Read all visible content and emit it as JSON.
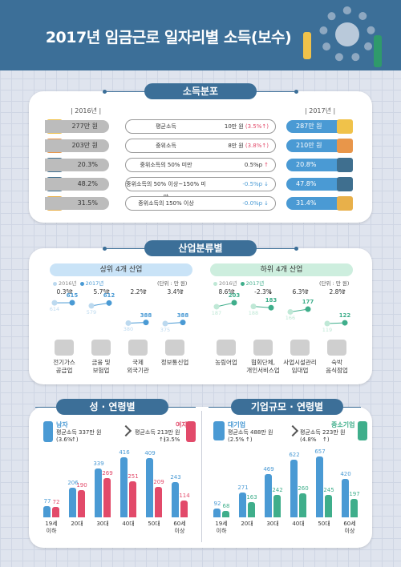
{
  "title": "2017년 임금근로 일자리별 소득(보수)",
  "colors": {
    "header": "#3c6f98",
    "up": "#e24a6a",
    "down": "#4a9ad4",
    "green": "#3fae8b",
    "pink": "#e24a6a"
  },
  "distribution": {
    "section_title": "소득분포",
    "year_left": "| 2016년 |",
    "year_right": "| 2017년 |",
    "rows": [
      {
        "left": "277만 원",
        "label": "평균소득",
        "change": "10만 원",
        "pct": "(3.5%",
        "arrow": "↑)",
        "dir": "up",
        "right": "287만 원",
        "icon": "wallet-icon"
      },
      {
        "left": "203만 원",
        "label": "중위소득",
        "change": "8만 원",
        "pct": "(3.8%",
        "arrow": "↑)",
        "dir": "up",
        "right": "210만 원",
        "icon": "chart-icon"
      },
      {
        "left": "20.3%",
        "label": "중위소득의 50% 미만",
        "change": "0.5%p",
        "pct": "",
        "arrow": "↑",
        "dir": "up",
        "right": "20.8%",
        "icon": "calculator-icon"
      },
      {
        "left": "48.2%",
        "label": "중위소득의 50% 이상~150% 미만",
        "change": "-0.5%p",
        "pct": "",
        "arrow": "↓",
        "dir": "down",
        "right": "47.8%",
        "icon": "calculator-icon"
      },
      {
        "left": "31.5%",
        "label": "중위소득의 150% 이상",
        "change": "-0.0%p",
        "pct": "",
        "arrow": "↓",
        "dir": "down",
        "right": "31.4%",
        "icon": "coins-icon"
      }
    ]
  },
  "industry": {
    "section_title": "산업분류별",
    "top": {
      "title": "상위 4개 산업",
      "legend_2016": "2016년",
      "legend_2017": "2017년",
      "unit": "(단위 : 만 원)",
      "items": [
        {
          "pct": "0.3%",
          "arrow": "↑",
          "v2016": 614,
          "v2017": 615,
          "name": "전기가스\n공급업",
          "icon": "plug-icon"
        },
        {
          "pct": "5.7%",
          "arrow": "↑",
          "v2016": 579,
          "v2017": 612,
          "name": "금융 및\n보험업",
          "icon": "bank-icon"
        },
        {
          "pct": "2.2%",
          "arrow": "↑",
          "v2016": 380,
          "v2017": 388,
          "name": "국제\n외국기관",
          "icon": "globe-icon"
        },
        {
          "pct": "3.4%",
          "arrow": "↑",
          "v2016": 375,
          "v2017": 388,
          "name": "정보통신업",
          "icon": "satellite-icon"
        }
      ]
    },
    "bottom": {
      "title": "하위 4개 산업",
      "legend_2016": "2016년",
      "legend_2017": "2017년",
      "unit": "(단위 : 만 원)",
      "items": [
        {
          "pct": "8.6%",
          "arrow": "↑",
          "v2016": 187,
          "v2017": 203,
          "name": "농림어업",
          "icon": "leaf-icon"
        },
        {
          "pct": "-2.3%",
          "arrow": "↓",
          "v2016": 188,
          "v2017": 183,
          "name": "협회단체,\n개인서비스업",
          "icon": "people-icon"
        },
        {
          "pct": "6.3%",
          "arrow": "↑",
          "v2016": 166,
          "v2017": 177,
          "name": "사업시설관리\n임대업",
          "icon": "building-icon"
        },
        {
          "pct": "2.8%",
          "arrow": "↑",
          "v2016": 119,
          "v2017": 122,
          "name": "숙박\n음식점업",
          "icon": "dining-icon"
        }
      ]
    }
  },
  "gender_age": {
    "section_title": "성 · 연령별",
    "male": {
      "label": "남자",
      "text": "평균소득 337만 원\n(3.6%",
      "arrow": "↑)"
    },
    "female": {
      "label": "여자",
      "text": "평균소득 213만 원\n(3.5%",
      "arrow": "↑)"
    },
    "chart_data": {
      "type": "bar",
      "categories": [
        "19세\n이하",
        "20대",
        "30대",
        "40대",
        "50대",
        "60세\n이상"
      ],
      "series": [
        {
          "name": "남자",
          "values": [
            77,
            206,
            339,
            416,
            409,
            243
          ]
        },
        {
          "name": "여자",
          "values": [
            72,
            190,
            269,
            251,
            209,
            114
          ]
        }
      ]
    }
  },
  "size_age": {
    "section_title": "기업규모 · 연령별",
    "large": {
      "label": "대기업",
      "text": "평균소득 488만 원\n(2.5%",
      "arrow": "↑)"
    },
    "small": {
      "label": "중소기업",
      "text": "평균소득 223만 원\n(4.8%",
      "arrow": "↑)"
    },
    "chart_data": {
      "type": "bar",
      "categories": [
        "19세\n이하",
        "20대",
        "30대",
        "40대",
        "50대",
        "60세\n이상"
      ],
      "series": [
        {
          "name": "대기업",
          "values": [
            92,
            271,
            469,
            622,
            657,
            420
          ]
        },
        {
          "name": "중소기업",
          "values": [
            68,
            163,
            242,
            260,
            245,
            197
          ]
        }
      ]
    }
  }
}
